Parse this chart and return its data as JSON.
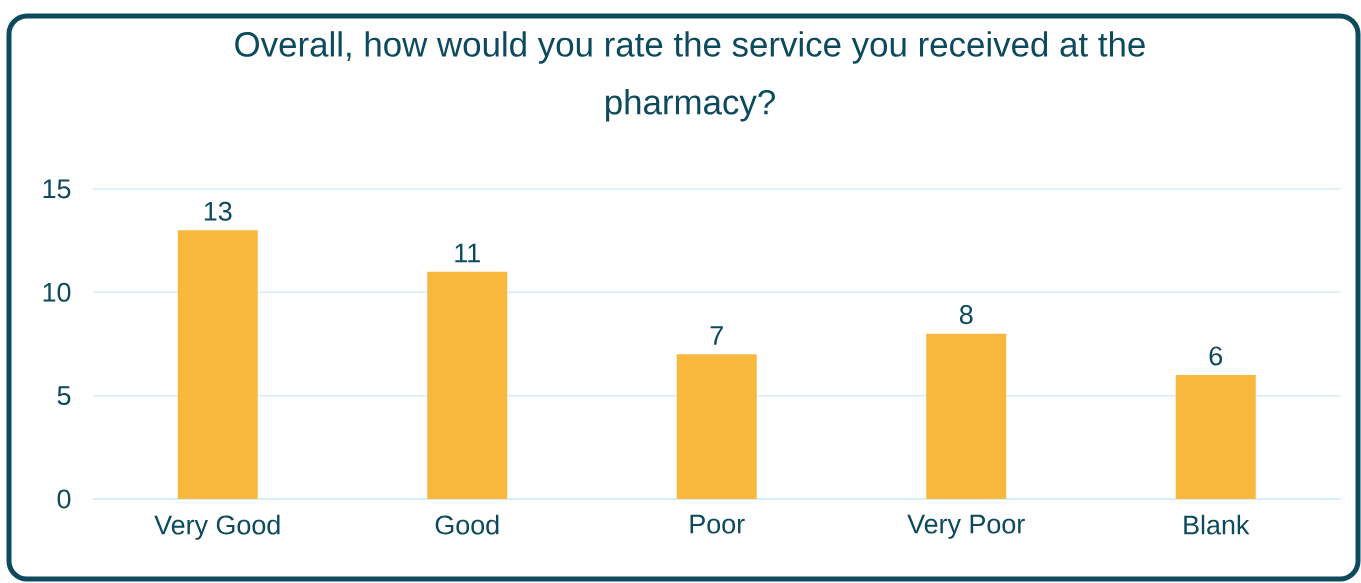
{
  "chart_data": {
    "type": "bar",
    "title": "Overall, how would you rate the service you received at the pharmacy?",
    "categories": [
      "Very Good",
      "Good",
      "Poor",
      "Very Poor",
      "Blank"
    ],
    "values": [
      13,
      11,
      7,
      8,
      6
    ],
    "color": "#f8b83e",
    "ylim": [
      0,
      15
    ],
    "yticks": [
      0,
      5,
      10,
      15
    ],
    "grid": "y",
    "data_labels": true
  }
}
